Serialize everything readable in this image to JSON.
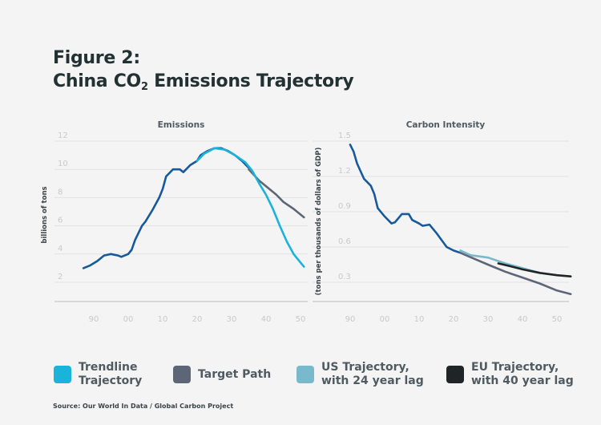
{
  "title": {
    "line1": "Figure 2:",
    "line2_prefix": "China CO",
    "line2_sub": "2",
    "line2_suffix": " Emissions Trajectory"
  },
  "colors": {
    "historical": "#17599c",
    "trendline": "#1ab3da",
    "target": "#5d6677",
    "us": "#7ab8cc",
    "eu": "#1f2527",
    "grid": "#e2e2e2",
    "axis": "#cfcfcf",
    "tick": "#c9c9c9"
  },
  "chart_data": [
    {
      "type": "line",
      "title": "Emissions",
      "ylabel": "billions of tons",
      "xlabel": "",
      "xlim": [
        1983,
        2053
      ],
      "ylim": [
        0.6,
        12
      ],
      "yticks": [
        2,
        4,
        6,
        8,
        10,
        12
      ],
      "xticks": [
        1990,
        2000,
        2010,
        2020,
        2030,
        2040,
        2050
      ],
      "xtick_labels": [
        "90",
        "00",
        "10",
        "20",
        "30",
        "40",
        "50"
      ],
      "grid": true,
      "series": [
        {
          "key": "historical",
          "x": [
            1987,
            1989,
            1991,
            1993,
            1995,
            1997,
            1998,
            2000,
            2001,
            2002,
            2004,
            2005,
            2007,
            2009,
            2010,
            2011,
            2013,
            2015,
            2016,
            2018,
            2020,
            2021,
            2023,
            2025,
            2027,
            2029,
            2031,
            2033,
            2035
          ],
          "y": [
            3.0,
            3.2,
            3.5,
            3.9,
            4.0,
            3.9,
            3.8,
            4.0,
            4.3,
            5.0,
            6.0,
            6.3,
            7.1,
            8.0,
            8.6,
            9.5,
            10.0,
            10.0,
            9.8,
            10.3,
            10.6,
            11.0,
            11.3,
            11.5,
            11.5,
            11.3,
            11.0,
            10.6,
            10.1
          ]
        },
        {
          "key": "target",
          "x": [
            2035,
            2038,
            2040,
            2043,
            2045,
            2048,
            2051
          ],
          "y": [
            10.0,
            9.2,
            8.8,
            8.2,
            7.7,
            7.2,
            6.6
          ]
        },
        {
          "key": "trendline",
          "x": [
            2020,
            2022,
            2025,
            2028,
            2031,
            2034,
            2036,
            2038,
            2040,
            2042,
            2044,
            2046,
            2048,
            2050,
            2051
          ],
          "y": [
            10.6,
            11.1,
            11.5,
            11.4,
            11.0,
            10.5,
            9.9,
            9.0,
            8.2,
            7.2,
            6.0,
            4.9,
            4.0,
            3.4,
            3.1
          ]
        }
      ]
    },
    {
      "type": "line",
      "title": "Carbon Intensity",
      "ylabel": "(tons per thousands of dollars of GDP)",
      "xlabel": "",
      "xlim": [
        1980,
        2054
      ],
      "ylim": [
        0.14,
        1.5
      ],
      "yticks": [
        0.3,
        0.6,
        0.9,
        1.2,
        1.5
      ],
      "ytick_labels": [
        "0.3",
        "0.6",
        "0.9",
        "1.2",
        "1.5"
      ],
      "xticks": [
        1990,
        2000,
        2010,
        2020,
        2030,
        2040,
        2050
      ],
      "xtick_labels": [
        "90",
        "00",
        "10",
        "20",
        "30",
        "40",
        "50"
      ],
      "grid": true,
      "series": [
        {
          "key": "historical",
          "x": [
            1990,
            1991,
            1992,
            1994,
            1996,
            1997,
            1998,
            2000,
            2002,
            2003,
            2005,
            2007,
            2008,
            2010,
            2011,
            2013,
            2015,
            2017,
            2018,
            2020,
            2022
          ],
          "y": [
            1.47,
            1.41,
            1.31,
            1.18,
            1.12,
            1.05,
            0.93,
            0.86,
            0.8,
            0.81,
            0.88,
            0.88,
            0.83,
            0.8,
            0.78,
            0.79,
            0.72,
            0.64,
            0.6,
            0.57,
            0.55
          ]
        },
        {
          "key": "target",
          "x": [
            2022,
            2026,
            2030,
            2035,
            2040,
            2045,
            2050,
            2054
          ],
          "y": [
            0.55,
            0.5,
            0.45,
            0.39,
            0.34,
            0.29,
            0.23,
            0.2
          ]
        },
        {
          "key": "us",
          "x": [
            2022,
            2025,
            2030,
            2035,
            2040,
            2045
          ],
          "y": [
            0.57,
            0.53,
            0.51,
            0.46,
            0.42,
            0.38
          ]
        },
        {
          "key": "eu",
          "x": [
            2033,
            2036,
            2040,
            2045,
            2050,
            2054
          ],
          "y": [
            0.46,
            0.44,
            0.41,
            0.38,
            0.36,
            0.35
          ]
        }
      ]
    }
  ],
  "legend": [
    {
      "key": "trendline",
      "label": "Trendline\nTrajectory"
    },
    {
      "key": "target",
      "label": "Target Path"
    },
    {
      "key": "us",
      "label": "US Trajectory,\nwith 24 year lag"
    },
    {
      "key": "eu",
      "label": "EU Trajectory,\nwith 40 year lag"
    }
  ],
  "source": "Source: Our World In Data / Global Carbon Project"
}
